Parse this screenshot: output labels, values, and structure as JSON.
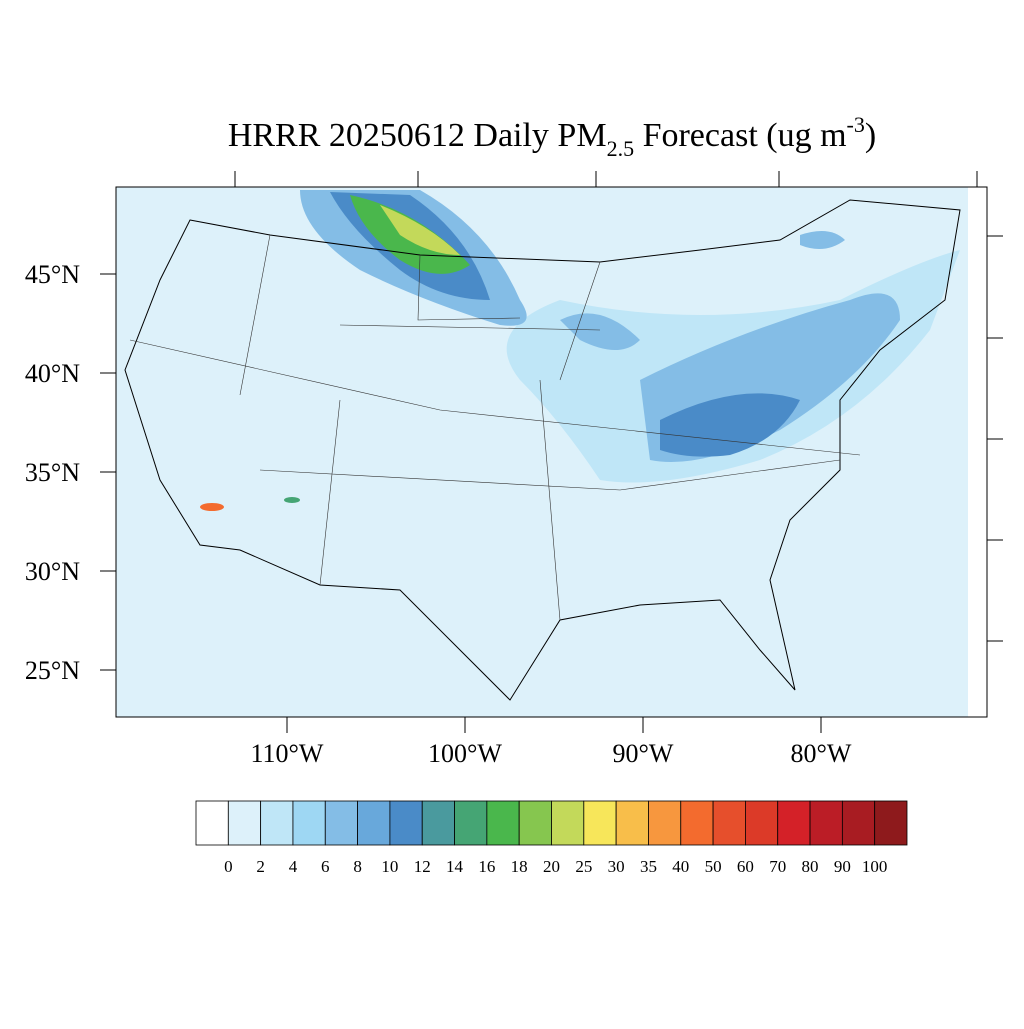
{
  "map": {
    "title_parts": [
      "HRRR 20250612 Daily PM",
      "2.5",
      " Forecast (ug m",
      "-3",
      ")"
    ],
    "lat_ticks": [
      {
        "value": 45,
        "label": "45°N"
      },
      {
        "value": 40,
        "label": "40°N"
      },
      {
        "value": 35,
        "label": "35°N"
      },
      {
        "value": 30,
        "label": "30°N"
      },
      {
        "value": 25,
        "label": "25°N"
      }
    ],
    "lon_ticks": [
      {
        "value": -110,
        "label": "110°W"
      },
      {
        "value": -100,
        "label": "100°W"
      },
      {
        "value": -90,
        "label": "90°W"
      },
      {
        "value": -80,
        "label": "80°W"
      }
    ],
    "colorbar": {
      "levels": [
        0,
        2,
        4,
        6,
        8,
        10,
        12,
        14,
        16,
        18,
        20,
        25,
        30,
        35,
        40,
        50,
        60,
        70,
        80,
        90,
        100
      ],
      "colors": [
        "#ffffff",
        "#ddf1fa",
        "#bfe6f7",
        "#9ed7f3",
        "#84bde6",
        "#68a8db",
        "#4a8bc8",
        "#4a9a9e",
        "#45a574",
        "#4ab74c",
        "#86c64f",
        "#c3d95a",
        "#f7e65a",
        "#f8be4a",
        "#f7973e",
        "#f36b2e",
        "#e64f2c",
        "#dc3a28",
        "#d42128",
        "#bb1d26",
        "#a81c22",
        "#8e1a1c"
      ]
    }
  }
}
